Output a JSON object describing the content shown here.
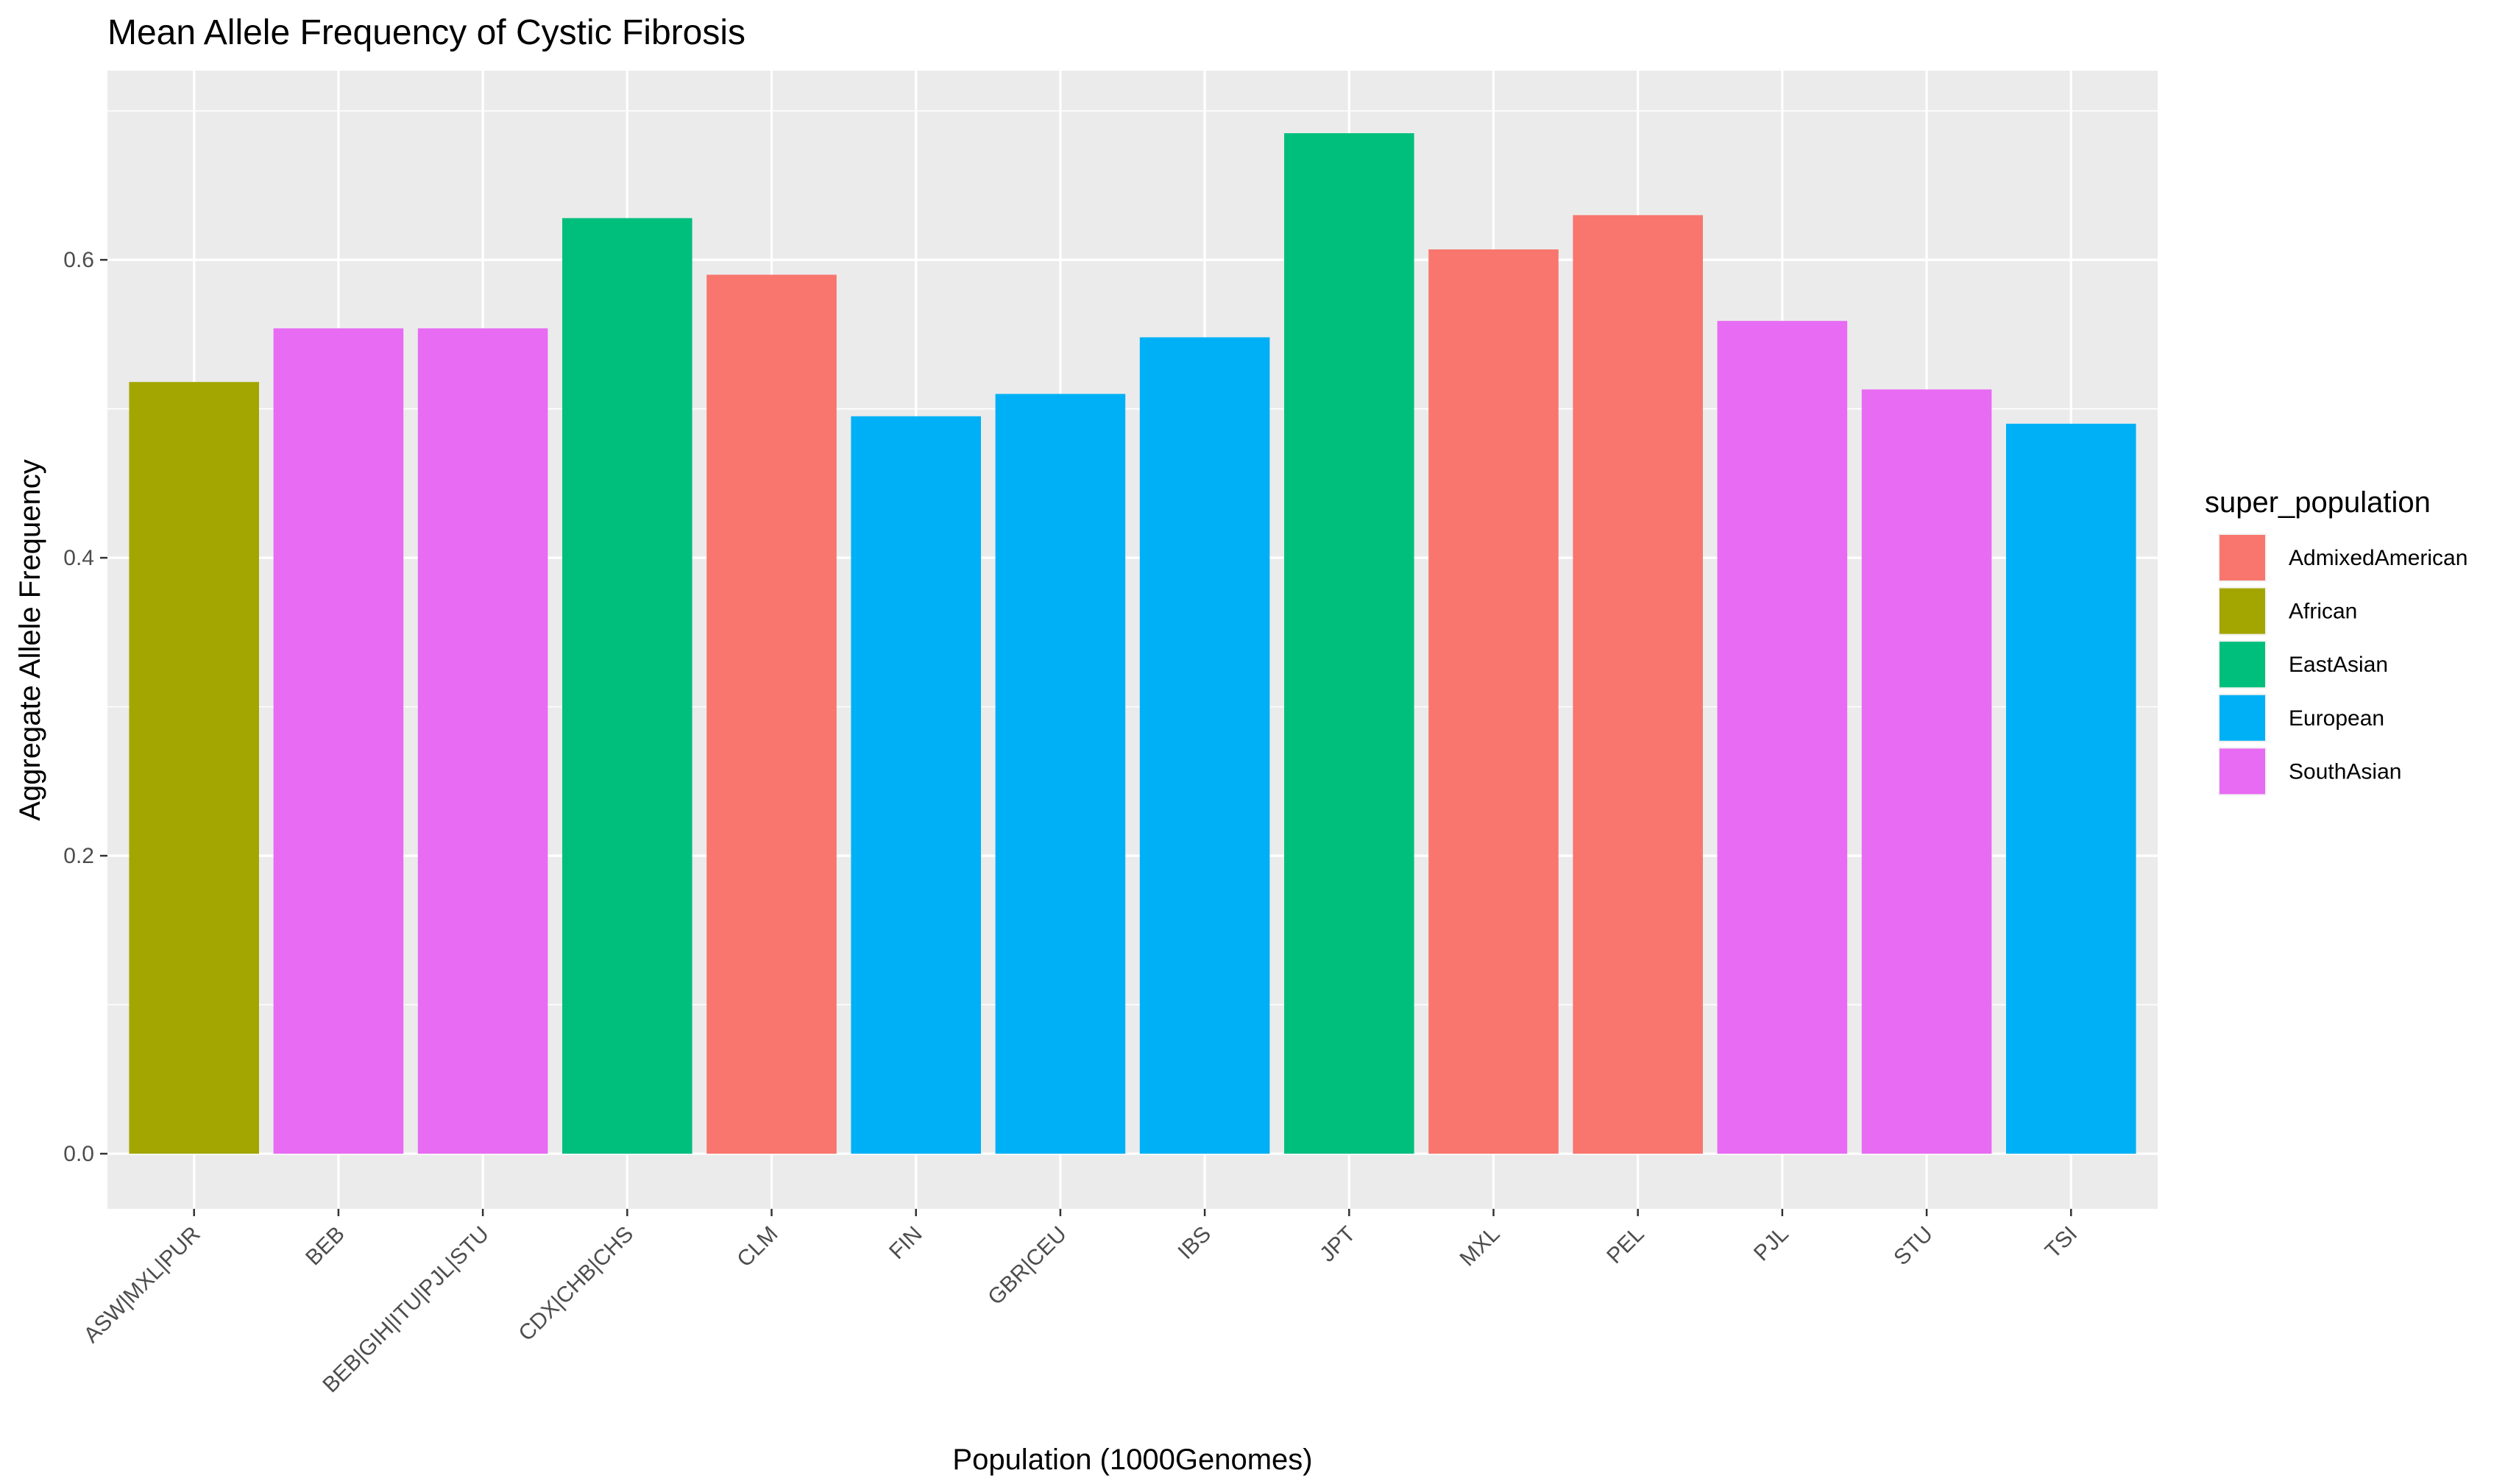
{
  "chart_data": {
    "type": "bar",
    "title": "Mean Allele Frequency of Cystic Fibrosis",
    "xlabel": "Population (1000Genomes)",
    "ylabel": "Aggregate Allele Frequency",
    "ylim": [
      -0.037,
      0.727
    ],
    "yticks": [
      0.0,
      0.2,
      0.4,
      0.6
    ],
    "ytick_labels": [
      "0.0",
      "0.2",
      "0.4",
      "0.6"
    ],
    "grid": true,
    "legend_position": "right",
    "legend_title": "super_population",
    "colors": {
      "AdmixedAmerican": "#F8766D",
      "African": "#A3A500",
      "EastAsian": "#00BF7D",
      "European": "#00B0F6",
      "SouthAsian": "#E76BF3"
    },
    "legend": [
      "AdmixedAmerican",
      "African",
      "EastAsian",
      "European",
      "SouthAsian"
    ],
    "categories": [
      "ASW|MXL|PUR",
      "BEB",
      "BEB|GIH|ITU|PJL|STU",
      "CDX|CHB|CHS",
      "CLM",
      "FIN",
      "GBR|CEU",
      "IBS",
      "JPT",
      "MXL",
      "PEL",
      "PJL",
      "STU",
      "TSI"
    ],
    "values": [
      0.518,
      0.554,
      0.554,
      0.628,
      0.59,
      0.495,
      0.51,
      0.548,
      0.685,
      0.607,
      0.63,
      0.559,
      0.513,
      0.49
    ],
    "groups": [
      "African",
      "SouthAsian",
      "SouthAsian",
      "EastAsian",
      "AdmixedAmerican",
      "European",
      "European",
      "European",
      "EastAsian",
      "AdmixedAmerican",
      "AdmixedAmerican",
      "SouthAsian",
      "SouthAsian",
      "European"
    ]
  }
}
